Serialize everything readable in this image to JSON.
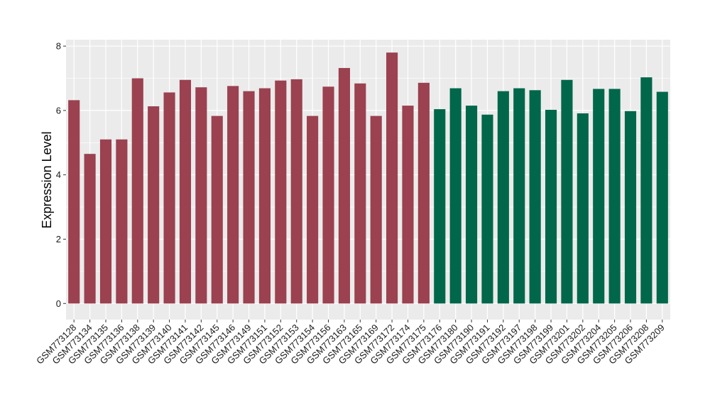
{
  "chart_data": {
    "type": "bar",
    "title": "",
    "xlabel": "",
    "ylabel": "Expression Level",
    "ylim": [
      -0.5,
      8.2
    ],
    "yticks": [
      0,
      2,
      4,
      6,
      8
    ],
    "grid": true,
    "legend": "none",
    "colors": {
      "group_1": "#9B4150",
      "group_2": "#00674A",
      "panel_bg": "#EBEBEB",
      "grid": "#FFFFFF"
    },
    "categories": [
      "GSM773128",
      "GSM773134",
      "GSM773135",
      "GSM773136",
      "GSM773138",
      "GSM773139",
      "GSM773140",
      "GSM773141",
      "GSM773142",
      "GSM773145",
      "GSM773146",
      "GSM773149",
      "GSM773151",
      "GSM773152",
      "GSM773153",
      "GSM773154",
      "GSM773156",
      "GSM773163",
      "GSM773165",
      "GSM773169",
      "GSM773172",
      "GSM773174",
      "GSM773175",
      "GSM773176",
      "GSM773180",
      "GSM773190",
      "GSM773191",
      "GSM773192",
      "GSM773197",
      "GSM773198",
      "GSM773199",
      "GSM773201",
      "GSM773202",
      "GSM773204",
      "GSM773205",
      "GSM773206",
      "GSM773208",
      "GSM773209"
    ],
    "values": [
      6.32,
      4.65,
      5.1,
      5.1,
      7.0,
      6.13,
      6.56,
      6.95,
      6.72,
      5.83,
      6.76,
      6.6,
      6.69,
      6.93,
      6.97,
      5.83,
      6.74,
      7.32,
      6.84,
      5.83,
      7.8,
      6.15,
      6.86,
      6.04,
      6.69,
      6.15,
      5.87,
      6.6,
      6.69,
      6.63,
      6.02,
      6.95,
      5.91,
      6.67,
      6.67,
      5.98,
      7.03,
      6.58
    ],
    "groups": [
      1,
      1,
      1,
      1,
      1,
      1,
      1,
      1,
      1,
      1,
      1,
      1,
      1,
      1,
      1,
      1,
      1,
      1,
      1,
      1,
      1,
      1,
      1,
      2,
      2,
      2,
      2,
      2,
      2,
      2,
      2,
      2,
      2,
      2,
      2,
      2,
      2,
      2
    ]
  }
}
